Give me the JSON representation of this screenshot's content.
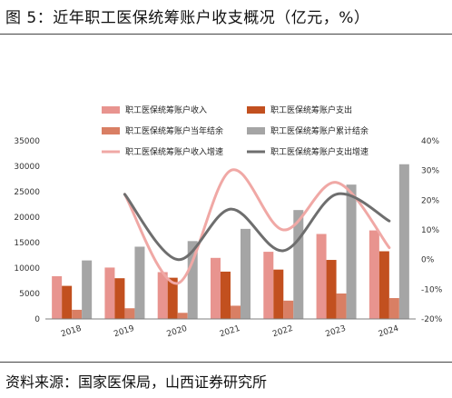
{
  "figure_title": "图 5：近年职工医保统筹账户收支概况（亿元，%）",
  "source_note": "资料来源：国家医保局，山西证券研究所",
  "chart_data": {
    "type": "bar",
    "categories": [
      "2018",
      "2019",
      "2020",
      "2021",
      "2022",
      "2023",
      "2024"
    ],
    "series": [
      {
        "name": "职工医保统筹账户收入",
        "kind": "bar",
        "axis": "left",
        "color": "#e8948f",
        "values": [
          8400,
          10100,
          9200,
          12000,
          13200,
          16700,
          17400
        ]
      },
      {
        "name": "职工医保统筹账户支出",
        "kind": "bar",
        "axis": "left",
        "color": "#c2501f",
        "values": [
          6500,
          8000,
          8100,
          9300,
          9700,
          11600,
          13300
        ]
      },
      {
        "name": "职工医保统筹账户当年结余",
        "kind": "bar",
        "axis": "left",
        "color": "#d97f64",
        "values": [
          1800,
          2100,
          1200,
          2600,
          3600,
          5000,
          4100
        ]
      },
      {
        "name": "职工医保统筹账户累计结余",
        "kind": "bar",
        "axis": "left",
        "color": "#a5a5a5",
        "values": [
          11500,
          14200,
          15300,
          17700,
          21400,
          26400,
          30400
        ]
      },
      {
        "name": "职工医保统筹账户收入增速",
        "kind": "line",
        "axis": "right",
        "color": "#f0a8a5",
        "values": [
          null,
          22,
          -8,
          30,
          10,
          26,
          4
        ]
      },
      {
        "name": "职工医保统筹账户支出增速",
        "kind": "line",
        "axis": "right",
        "color": "#6e6e6e",
        "values": [
          null,
          22,
          0,
          17,
          3,
          22,
          13
        ]
      }
    ],
    "ylim_left": [
      0,
      35000
    ],
    "yticks_left": [
      "0",
      "5000",
      "10000",
      "15000",
      "20000",
      "25000",
      "30000",
      "35000"
    ],
    "ylim_right": [
      -20,
      40
    ],
    "yticks_right": [
      "-20%",
      "-10%",
      "0%",
      "10%",
      "20%",
      "30%",
      "40%"
    ],
    "legend_position": "top",
    "grid": false
  }
}
